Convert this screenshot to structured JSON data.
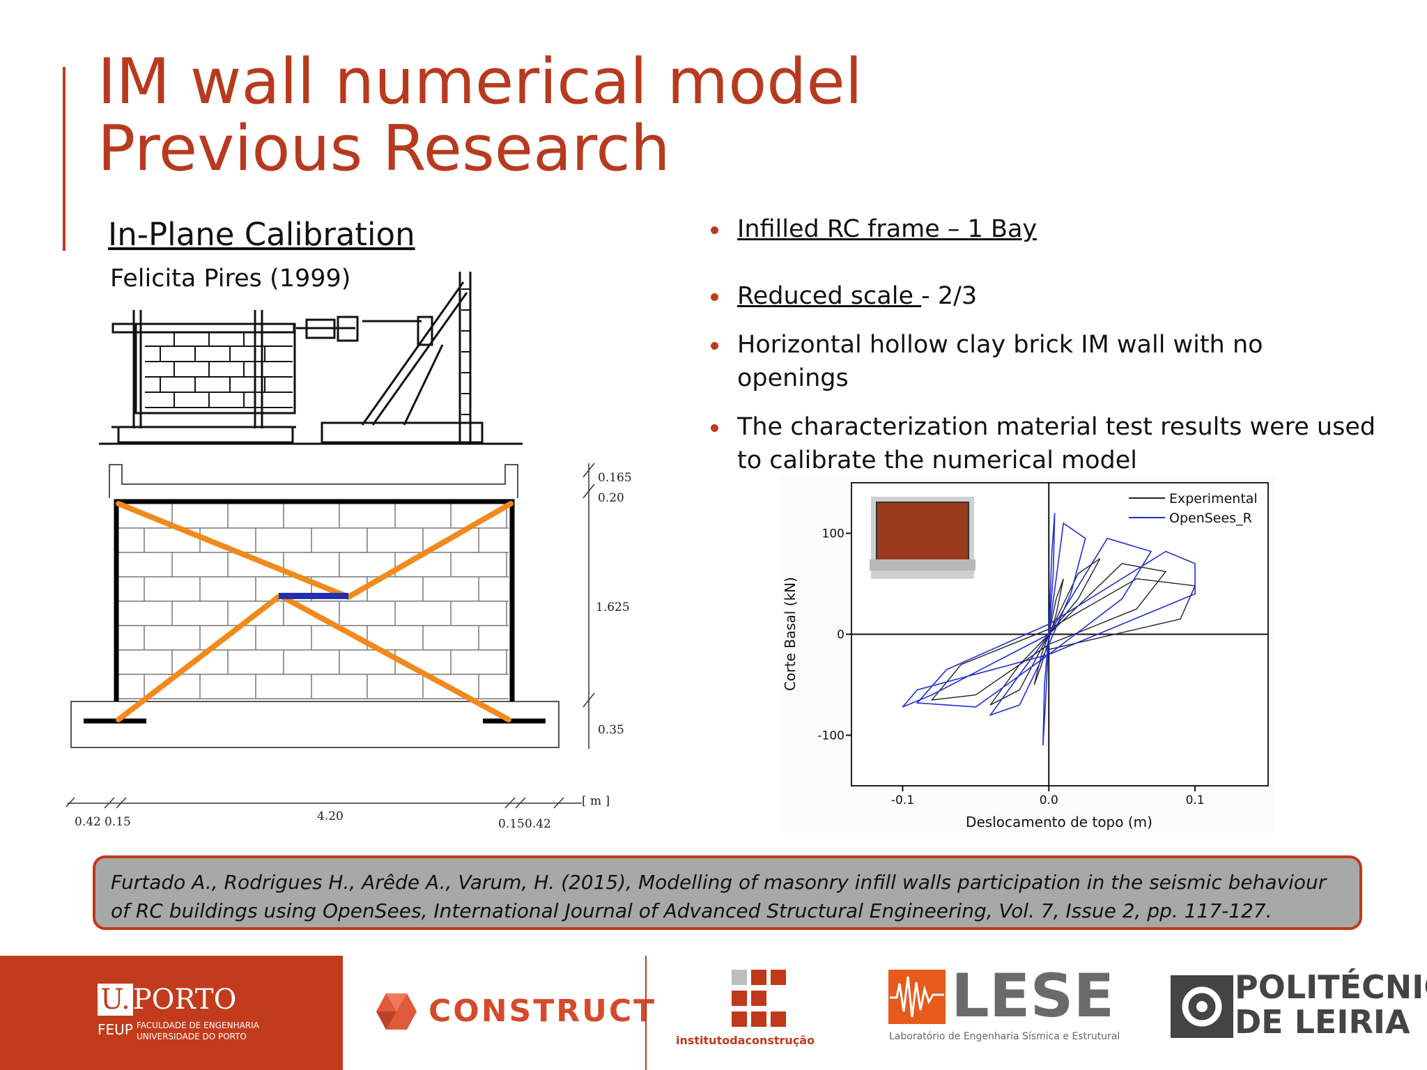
{
  "slide": {
    "title_line1": "IM wall numerical model",
    "title_line2": "Previous Research",
    "subheading": "In-Plane Calibration",
    "author": "Felicita Pires (1999)"
  },
  "bullets": [
    {
      "underlined": "Infilled RC frame – 1 Bay",
      "rest": ""
    },
    {
      "underlined": "Reduced scale ",
      "rest": "- 2/3"
    },
    {
      "underlined": "",
      "rest": "Horizontal hollow clay brick IM wall with no openings"
    },
    {
      "underlined": "",
      "rest": "The characterization material test results were used to calibrate the numerical model"
    }
  ],
  "drawing": {
    "dims_right": [
      "0.165",
      "0.20",
      "1.625",
      "0.35"
    ],
    "dims_bottom": [
      "0.42",
      "0.15",
      "4.20",
      "0.15",
      "0.42"
    ],
    "unit": "[ m ]"
  },
  "chart_data": {
    "type": "line",
    "xlabel": "Deslocamento de topo (m)",
    "ylabel": "Corte Basal (kN)",
    "xlim": [
      -0.135,
      0.15
    ],
    "ylim": [
      -150,
      150
    ],
    "xticks": [
      "-0.1",
      "0.0",
      "0.1"
    ],
    "yticks": [
      "100",
      "0",
      "-100"
    ],
    "legend_position": "top-right",
    "series": [
      {
        "name": "Experimental",
        "color": "#222222",
        "points": [
          [
            0.0,
            0
          ],
          [
            0.005,
            35
          ],
          [
            0.01,
            55
          ],
          [
            0.005,
            20
          ],
          [
            0.0,
            -5
          ],
          [
            -0.005,
            -30
          ],
          [
            -0.01,
            -50
          ],
          [
            -0.005,
            -20
          ],
          [
            0.0,
            0
          ],
          [
            0.02,
            60
          ],
          [
            0.035,
            75
          ],
          [
            0.02,
            35
          ],
          [
            0.0,
            0
          ],
          [
            -0.02,
            -55
          ],
          [
            -0.04,
            -70
          ],
          [
            -0.02,
            -30
          ],
          [
            0.0,
            0
          ],
          [
            0.05,
            70
          ],
          [
            0.08,
            62
          ],
          [
            0.06,
            25
          ],
          [
            0.0,
            -10
          ],
          [
            -0.05,
            -60
          ],
          [
            -0.08,
            -65
          ],
          [
            -0.06,
            -30
          ],
          [
            0.0,
            5
          ],
          [
            0.06,
            55
          ],
          [
            0.1,
            48
          ],
          [
            0.09,
            15
          ],
          [
            0.0,
            -15
          ]
        ]
      },
      {
        "name": "OpenSees_R",
        "color": "#1f2fd0",
        "points": [
          [
            0.0,
            0
          ],
          [
            0.002,
            80
          ],
          [
            0.004,
            120
          ],
          [
            0.003,
            60
          ],
          [
            0.0,
            0
          ],
          [
            -0.002,
            -60
          ],
          [
            -0.004,
            -110
          ],
          [
            -0.003,
            -50
          ],
          [
            0.0,
            0
          ],
          [
            0.01,
            110
          ],
          [
            0.025,
            95
          ],
          [
            0.015,
            40
          ],
          [
            0.0,
            -10
          ],
          [
            -0.02,
            -70
          ],
          [
            -0.04,
            -80
          ],
          [
            -0.02,
            -40
          ],
          [
            0.0,
            0
          ],
          [
            0.04,
            95
          ],
          [
            0.07,
            82
          ],
          [
            0.05,
            35
          ],
          [
            0.0,
            -20
          ],
          [
            -0.05,
            -72
          ],
          [
            -0.09,
            -68
          ],
          [
            -0.07,
            -35
          ],
          [
            0.0,
            10
          ],
          [
            0.08,
            82
          ],
          [
            0.1,
            70
          ],
          [
            0.1,
            40
          ],
          [
            0.0,
            -20
          ],
          [
            -0.09,
            -55
          ],
          [
            -0.1,
            -72
          ],
          [
            -0.08,
            -60
          ],
          [
            0.0,
            0
          ]
        ]
      }
    ]
  },
  "reference": {
    "text": "Furtado A., Rodrigues H., Arêde A., Varum, H. (2015), Modelling of masonry infill walls participation in the seismic behaviour of RC buildings using OpenSees, International Journal of Advanced Structural Engineering, Vol. 7, Issue 2, pp. 117-127."
  },
  "footer": {
    "uporto_u": "U.",
    "uporto_porto": "PORTO",
    "feup": "FEUP",
    "feup_line1": "FACULDADE DE ENGENHARIA",
    "feup_line2": "UNIVERSIDADE DO PORTO",
    "construct": "CONSTRUCT",
    "instituto": "institutodaconstrução",
    "lese": "LESE",
    "lese_sub": "Laboratório de Engenharia Sísmica e Estrutural",
    "politecnico1": "POLITÉCNICO",
    "politecnico2": "DE LEIRIA"
  },
  "colors": {
    "accent": "#c0391b",
    "title": "#b83a1e",
    "strut": "#f08a1c",
    "opensees": "#1f2fd0"
  }
}
